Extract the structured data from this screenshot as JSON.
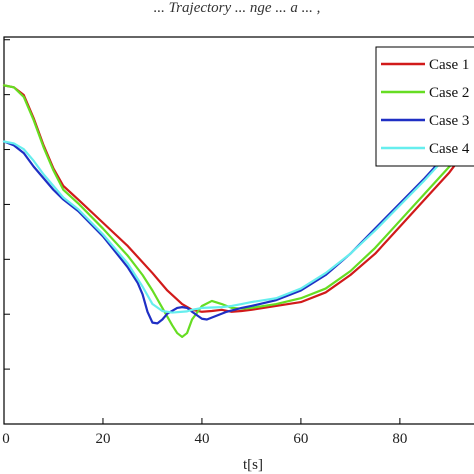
{
  "header": {
    "caption": "... Trajectory ... nge ... a ... ,"
  },
  "chart_data": {
    "type": "line",
    "title": "",
    "xlabel": "t[s]",
    "ylabel": "",
    "xlim": [
      0,
      97
    ],
    "ylim": [
      0,
      1
    ],
    "x_ticks": [
      0,
      20,
      40,
      60,
      80
    ],
    "y_ticks_visible_count": 7,
    "grid": false,
    "legend_position": "top-right",
    "series": [
      {
        "name": "Case 1",
        "color": "#d11a1a",
        "points": [
          [
            0,
            0.875
          ],
          [
            2,
            0.87
          ],
          [
            4,
            0.85
          ],
          [
            6,
            0.79
          ],
          [
            8,
            0.72
          ],
          [
            10,
            0.66
          ],
          [
            12,
            0.615
          ],
          [
            15,
            0.58
          ],
          [
            20,
            0.52
          ],
          [
            25,
            0.46
          ],
          [
            30,
            0.39
          ],
          [
            33,
            0.345
          ],
          [
            36,
            0.31
          ],
          [
            38,
            0.295
          ],
          [
            40,
            0.29
          ],
          [
            42,
            0.292
          ],
          [
            44,
            0.295
          ],
          [
            46,
            0.29
          ],
          [
            48,
            0.292
          ],
          [
            50,
            0.295
          ],
          [
            55,
            0.305
          ],
          [
            60,
            0.315
          ],
          [
            65,
            0.34
          ],
          [
            70,
            0.385
          ],
          [
            75,
            0.44
          ],
          [
            80,
            0.51
          ],
          [
            85,
            0.58
          ],
          [
            90,
            0.65
          ],
          [
            95,
            0.735
          ],
          [
            97,
            0.765
          ]
        ]
      },
      {
        "name": "Case 2",
        "color": "#66dd22",
        "points": [
          [
            0,
            0.875
          ],
          [
            2,
            0.87
          ],
          [
            4,
            0.845
          ],
          [
            6,
            0.785
          ],
          [
            8,
            0.715
          ],
          [
            10,
            0.655
          ],
          [
            12,
            0.605
          ],
          [
            15,
            0.57
          ],
          [
            20,
            0.505
          ],
          [
            25,
            0.435
          ],
          [
            28,
            0.385
          ],
          [
            30,
            0.345
          ],
          [
            32,
            0.3
          ],
          [
            34,
            0.255
          ],
          [
            35,
            0.235
          ],
          [
            36,
            0.225
          ],
          [
            37,
            0.235
          ],
          [
            38,
            0.27
          ],
          [
            40,
            0.305
          ],
          [
            42,
            0.318
          ],
          [
            44,
            0.31
          ],
          [
            46,
            0.3
          ],
          [
            48,
            0.298
          ],
          [
            50,
            0.3
          ],
          [
            55,
            0.31
          ],
          [
            60,
            0.325
          ],
          [
            65,
            0.35
          ],
          [
            70,
            0.395
          ],
          [
            75,
            0.455
          ],
          [
            80,
            0.525
          ],
          [
            85,
            0.595
          ],
          [
            90,
            0.665
          ],
          [
            95,
            0.745
          ],
          [
            97,
            0.775
          ]
        ]
      },
      {
        "name": "Case 3",
        "color": "#1f2fc4",
        "points": [
          [
            0,
            0.73
          ],
          [
            2,
            0.72
          ],
          [
            4,
            0.7
          ],
          [
            6,
            0.665
          ],
          [
            8,
            0.635
          ],
          [
            10,
            0.605
          ],
          [
            12,
            0.58
          ],
          [
            15,
            0.55
          ],
          [
            20,
            0.485
          ],
          [
            25,
            0.405
          ],
          [
            27,
            0.365
          ],
          [
            28,
            0.335
          ],
          [
            29,
            0.29
          ],
          [
            30,
            0.262
          ],
          [
            31,
            0.26
          ],
          [
            32,
            0.27
          ],
          [
            33,
            0.285
          ],
          [
            35,
            0.3
          ],
          [
            36,
            0.302
          ],
          [
            37,
            0.3
          ],
          [
            38,
            0.29
          ],
          [
            40,
            0.272
          ],
          [
            41,
            0.27
          ],
          [
            43,
            0.28
          ],
          [
            45,
            0.29
          ],
          [
            48,
            0.3
          ],
          [
            50,
            0.305
          ],
          [
            55,
            0.32
          ],
          [
            60,
            0.345
          ],
          [
            65,
            0.385
          ],
          [
            70,
            0.44
          ],
          [
            75,
            0.505
          ],
          [
            80,
            0.57
          ],
          [
            85,
            0.635
          ],
          [
            90,
            0.705
          ],
          [
            95,
            0.775
          ],
          [
            97,
            0.8
          ]
        ]
      },
      {
        "name": "Case 4",
        "color": "#66eeee",
        "points": [
          [
            0,
            0.73
          ],
          [
            2,
            0.725
          ],
          [
            4,
            0.71
          ],
          [
            6,
            0.68
          ],
          [
            8,
            0.645
          ],
          [
            10,
            0.615
          ],
          [
            12,
            0.585
          ],
          [
            15,
            0.555
          ],
          [
            20,
            0.49
          ],
          [
            25,
            0.415
          ],
          [
            28,
            0.355
          ],
          [
            30,
            0.31
          ],
          [
            32,
            0.292
          ],
          [
            34,
            0.288
          ],
          [
            36,
            0.29
          ],
          [
            37,
            0.291
          ],
          [
            38,
            0.295
          ],
          [
            40,
            0.3
          ],
          [
            42,
            0.301
          ],
          [
            44,
            0.302
          ],
          [
            46,
            0.305
          ],
          [
            48,
            0.31
          ],
          [
            50,
            0.315
          ],
          [
            55,
            0.325
          ],
          [
            60,
            0.35
          ],
          [
            65,
            0.39
          ],
          [
            70,
            0.44
          ],
          [
            75,
            0.5
          ],
          [
            80,
            0.565
          ],
          [
            85,
            0.63
          ],
          [
            90,
            0.7
          ],
          [
            95,
            0.77
          ],
          [
            97,
            0.795
          ]
        ]
      }
    ]
  }
}
